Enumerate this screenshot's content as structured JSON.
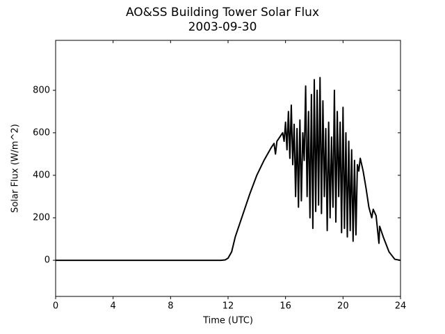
{
  "chart_data": {
    "type": "line",
    "title": "AO&SS Building Tower Solar Flux",
    "subtitle": "2003-09-30",
    "x_label": "Time (UTC)",
    "y_label": "Solar Flux (W/m^2)",
    "x": [
      0,
      1,
      2,
      3,
      4,
      5,
      6,
      7,
      8,
      9,
      10,
      11,
      11.5,
      11.8,
      12,
      12.25,
      12.5,
      13,
      13.5,
      14,
      14.5,
      15,
      15.2,
      15.3,
      15.4,
      15.6,
      15.8,
      15.9,
      16,
      16.1,
      16.2,
      16.3,
      16.4,
      16.5,
      16.6,
      16.7,
      16.8,
      16.9,
      17,
      17.1,
      17.2,
      17.3,
      17.4,
      17.5,
      17.6,
      17.7,
      17.8,
      17.9,
      18,
      18.1,
      18.2,
      18.3,
      18.4,
      18.5,
      18.6,
      18.7,
      18.8,
      18.9,
      19,
      19.1,
      19.2,
      19.3,
      19.4,
      19.5,
      19.6,
      19.7,
      19.8,
      19.9,
      20,
      20.1,
      20.2,
      20.3,
      20.4,
      20.5,
      20.6,
      20.7,
      20.8,
      20.9,
      21,
      21.1,
      21.2,
      21.4,
      21.6,
      21.8,
      22,
      22.1,
      22.3,
      22.5,
      22.55,
      22.8,
      23.2,
      23.6,
      24
    ],
    "series": [
      {
        "name": "Solar Flux",
        "color": "#000000",
        "values": [
          0,
          0,
          0,
          0,
          0,
          0,
          0,
          0,
          0,
          0,
          0,
          0,
          0,
          2,
          10,
          40,
          110,
          210,
          310,
          400,
          470,
          530,
          550,
          500,
          560,
          580,
          600,
          560,
          650,
          520,
          700,
          480,
          730,
          450,
          640,
          300,
          620,
          250,
          660,
          280,
          600,
          470,
          820,
          300,
          700,
          200,
          780,
          150,
          850,
          230,
          800,
          260,
          860,
          220,
          750,
          300,
          620,
          140,
          650,
          200,
          580,
          250,
          800,
          180,
          700,
          300,
          650,
          130,
          720,
          150,
          600,
          110,
          560,
          140,
          520,
          90,
          470,
          120,
          450,
          420,
          480,
          420,
          340,
          250,
          200,
          240,
          210,
          80,
          160,
          110,
          40,
          5,
          0
        ]
      }
    ],
    "xlim": [
      0,
      24
    ],
    "xticks": [
      0,
      4,
      8,
      12,
      16,
      20,
      24
    ],
    "ylim": [
      -170,
      1035
    ],
    "yticks": [
      0,
      200,
      400,
      600,
      800
    ]
  }
}
